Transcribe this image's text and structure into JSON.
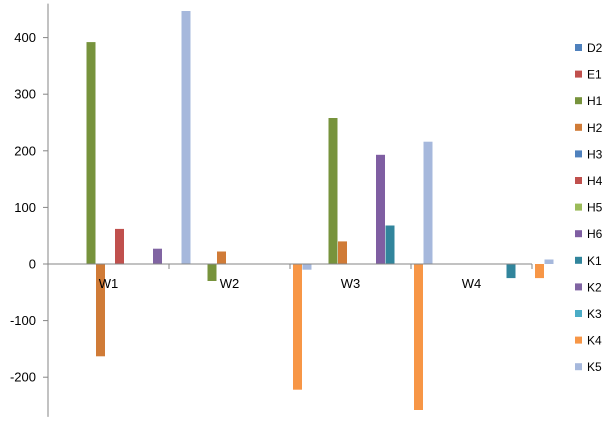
{
  "chart_data": {
    "type": "bar",
    "title": "",
    "xlabel": "",
    "ylabel": "",
    "categories": [
      "W1",
      "W2",
      "W3",
      "W4"
    ],
    "ylim": [
      -270,
      460
    ],
    "yticks": [
      400,
      300,
      200,
      100,
      0,
      -100,
      -200
    ],
    "grid": false,
    "legend_position": "right",
    "series": [
      {
        "name": "D2",
        "color": "#4f81bd",
        "values": [
          0,
          0,
          0,
          0
        ]
      },
      {
        "name": "E1",
        "color": "#c0504d",
        "values": [
          0,
          0,
          0,
          0
        ]
      },
      {
        "name": "H1",
        "color": "#77933c",
        "values": [
          392,
          -30,
          258,
          0
        ]
      },
      {
        "name": "H2",
        "color": "#d07b37",
        "values": [
          -163,
          22,
          40,
          0
        ]
      },
      {
        "name": "H3",
        "color": "#4f81bd",
        "values": [
          0,
          0,
          0,
          0
        ]
      },
      {
        "name": "H4",
        "color": "#c0504d",
        "values": [
          62,
          0,
          0,
          0
        ]
      },
      {
        "name": "H5",
        "color": "#9bbb59",
        "values": [
          0,
          0,
          0,
          0
        ]
      },
      {
        "name": "H6",
        "color": "#7f5ea2",
        "values": [
          0,
          0,
          193,
          0
        ]
      },
      {
        "name": "K1",
        "color": "#31859c",
        "values": [
          0,
          0,
          68,
          -25
        ]
      },
      {
        "name": "K2",
        "color": "#8064a2",
        "values": [
          27,
          0,
          0,
          0
        ]
      },
      {
        "name": "K3",
        "color": "#4bacc6",
        "values": [
          0,
          0,
          0,
          0
        ]
      },
      {
        "name": "K4",
        "color": "#f79646",
        "values": [
          0,
          -222,
          -258,
          -25
        ]
      },
      {
        "name": "K5",
        "color": "#a6b8dc",
        "values": [
          447,
          -10,
          216,
          8
        ]
      }
    ]
  }
}
